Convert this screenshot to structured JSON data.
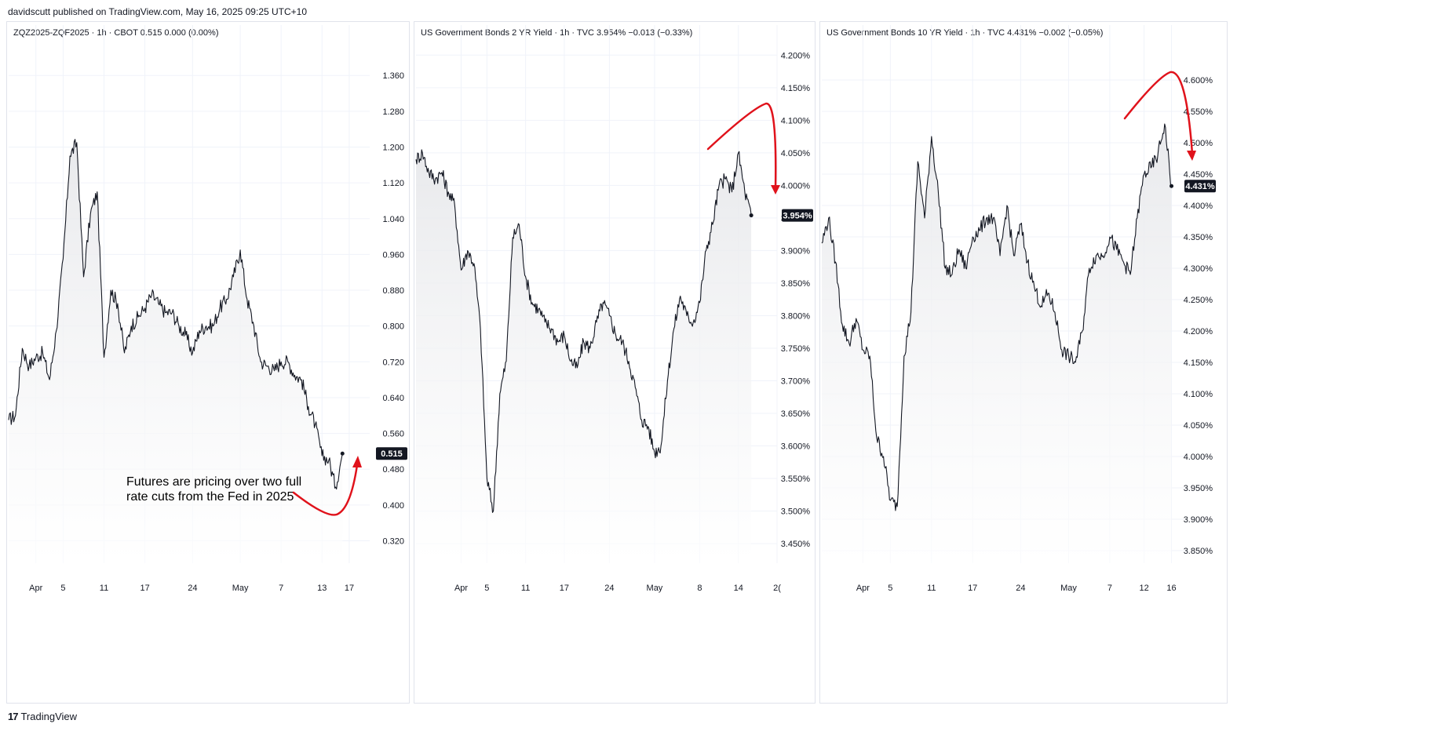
{
  "header": {
    "publisher": "davidscutt published on TradingView.com, May 16, 2025 09:25 UTC+10"
  },
  "footer": {
    "brand": "TradingView",
    "logo_glyph": "17"
  },
  "colors": {
    "line": "#131722",
    "fill_top": "#e6e7ea",
    "fill_bottom": "#ffffff",
    "annotation": "#e0121b",
    "grid": "#f0f3fa",
    "label_bg": "#131722"
  },
  "chart_data": [
    {
      "type": "area",
      "title": "ZQZ2025-ZQF2025 · 1h · CBOT  0.515  0.000 (0.00%)",
      "x_range": [
        "2025-03-28",
        "2025-05-20"
      ],
      "ylim": [
        0.27,
        1.42
      ],
      "yticks": [
        "1.360",
        "1.280",
        "1.200",
        "1.120",
        "1.040",
        "0.960",
        "0.880",
        "0.800",
        "0.720",
        "0.640",
        "0.560",
        "0.480",
        "0.400",
        "0.320"
      ],
      "xticks": [
        {
          "label": "Apr",
          "date": "2025-04-01"
        },
        {
          "label": "5",
          "date": "2025-04-05"
        },
        {
          "label": "11",
          "date": "2025-04-11"
        },
        {
          "label": "17",
          "date": "2025-04-17"
        },
        {
          "label": "24",
          "date": "2025-04-24"
        },
        {
          "label": "May",
          "date": "2025-05-01"
        },
        {
          "label": "7",
          "date": "2025-05-07"
        },
        {
          "label": "13",
          "date": "2025-05-13"
        },
        {
          "label": "17",
          "date": "2025-05-17"
        }
      ],
      "last_value": "0.515",
      "series": [
        {
          "x": [
            "2025-03-28",
            "2025-03-29",
            "2025-03-30",
            "2025-03-31",
            "2025-04-01",
            "2025-04-02",
            "2025-04-03",
            "2025-04-04",
            "2025-04-05",
            "2025-04-06",
            "2025-04-07",
            "2025-04-08",
            "2025-04-09",
            "2025-04-10",
            "2025-04-11",
            "2025-04-12",
            "2025-04-13",
            "2025-04-14",
            "2025-04-15",
            "2025-04-16",
            "2025-04-17",
            "2025-04-18",
            "2025-04-19",
            "2025-04-20",
            "2025-04-21",
            "2025-04-22",
            "2025-04-23",
            "2025-04-24",
            "2025-04-25",
            "2025-04-26",
            "2025-04-27",
            "2025-04-28",
            "2025-04-29",
            "2025-04-30",
            "2025-05-01",
            "2025-05-02",
            "2025-05-03",
            "2025-05-04",
            "2025-05-05",
            "2025-05-06",
            "2025-05-07",
            "2025-05-08",
            "2025-05-09",
            "2025-05-10",
            "2025-05-11",
            "2025-05-12",
            "2025-05-13",
            "2025-05-14",
            "2025-05-15",
            "2025-05-16"
          ],
          "y": [
            0.59,
            0.6,
            0.75,
            0.71,
            0.73,
            0.74,
            0.68,
            0.79,
            0.95,
            1.18,
            1.21,
            0.91,
            1.05,
            1.1,
            0.73,
            0.88,
            0.85,
            0.74,
            0.8,
            0.82,
            0.84,
            0.87,
            0.85,
            0.83,
            0.83,
            0.8,
            0.78,
            0.74,
            0.79,
            0.8,
            0.8,
            0.84,
            0.86,
            0.91,
            0.97,
            0.86,
            0.8,
            0.72,
            0.71,
            0.7,
            0.72,
            0.72,
            0.69,
            0.68,
            0.62,
            0.58,
            0.51,
            0.5,
            0.44,
            0.515
          ]
        }
      ],
      "annotation": "Futures are pricing over two full rate cuts from the Fed in 2025"
    },
    {
      "type": "area",
      "title": "US Government Bonds 2 YR Yield · 1h · TVC  3.954%  −0.013 (−0.33%)",
      "x_range": [
        "2025-03-25",
        "2025-05-20"
      ],
      "ylim": [
        3.42,
        4.21
      ],
      "yticks": [
        "4.200%",
        "4.150%",
        "4.100%",
        "4.050%",
        "4.000%",
        "3.950%",
        "3.900%",
        "3.850%",
        "3.800%",
        "3.750%",
        "3.700%",
        "3.650%",
        "3.600%",
        "3.550%",
        "3.500%",
        "3.450%"
      ],
      "xticks": [
        {
          "label": "Apr",
          "date": "2025-04-01"
        },
        {
          "label": "5",
          "date": "2025-04-05"
        },
        {
          "label": "11",
          "date": "2025-04-11"
        },
        {
          "label": "17",
          "date": "2025-04-17"
        },
        {
          "label": "24",
          "date": "2025-04-24"
        },
        {
          "label": "May",
          "date": "2025-05-01"
        },
        {
          "label": "8",
          "date": "2025-05-08"
        },
        {
          "label": "14",
          "date": "2025-05-14"
        },
        {
          "label": "2(",
          "date": "2025-05-20"
        }
      ],
      "last_value": "3.954%",
      "series": [
        {
          "x": [
            "2025-03-25",
            "2025-03-26",
            "2025-03-27",
            "2025-03-28",
            "2025-03-29",
            "2025-03-30",
            "2025-03-31",
            "2025-04-01",
            "2025-04-02",
            "2025-04-03",
            "2025-04-04",
            "2025-04-05",
            "2025-04-06",
            "2025-04-07",
            "2025-04-08",
            "2025-04-09",
            "2025-04-10",
            "2025-04-11",
            "2025-04-12",
            "2025-04-13",
            "2025-04-14",
            "2025-04-15",
            "2025-04-16",
            "2025-04-17",
            "2025-04-18",
            "2025-04-19",
            "2025-04-20",
            "2025-04-21",
            "2025-04-22",
            "2025-04-23",
            "2025-04-24",
            "2025-04-25",
            "2025-04-26",
            "2025-04-27",
            "2025-04-28",
            "2025-04-29",
            "2025-04-30",
            "2025-05-01",
            "2025-05-02",
            "2025-05-03",
            "2025-05-04",
            "2025-05-05",
            "2025-05-06",
            "2025-05-07",
            "2025-05-08",
            "2025-05-09",
            "2025-05-10",
            "2025-05-11",
            "2025-05-12",
            "2025-05-13",
            "2025-05-14",
            "2025-05-15",
            "2025-05-16"
          ],
          "y": [
            4.04,
            4.05,
            4.02,
            4.01,
            4.02,
            3.99,
            3.97,
            3.87,
            3.9,
            3.88,
            3.78,
            3.55,
            3.5,
            3.68,
            3.73,
            3.92,
            3.94,
            3.86,
            3.82,
            3.81,
            3.79,
            3.78,
            3.76,
            3.77,
            3.73,
            3.72,
            3.76,
            3.75,
            3.79,
            3.82,
            3.8,
            3.77,
            3.76,
            3.73,
            3.69,
            3.64,
            3.63,
            3.59,
            3.6,
            3.7,
            3.78,
            3.83,
            3.8,
            3.79,
            3.82,
            3.9,
            3.94,
            4.0,
            4.01,
            3.99,
            4.05,
            3.99,
            3.954
          ]
        }
      ]
    },
    {
      "type": "area",
      "title": "US Government Bonds 10 YR Yield · 1h · TVC  4.431%  −0.002 (−0.05%)",
      "x_range": [
        "2025-03-26",
        "2025-05-18"
      ],
      "ylim": [
        3.83,
        4.65
      ],
      "yticks": [
        "4.600%",
        "4.550%",
        "4.500%",
        "4.450%",
        "4.400%",
        "4.350%",
        "4.300%",
        "4.250%",
        "4.200%",
        "4.150%",
        "4.100%",
        "4.050%",
        "4.000%",
        "3.950%",
        "3.900%",
        "3.850%"
      ],
      "xticks": [
        {
          "label": "Apr",
          "date": "2025-04-01"
        },
        {
          "label": "5",
          "date": "2025-04-05"
        },
        {
          "label": "11",
          "date": "2025-04-11"
        },
        {
          "label": "17",
          "date": "2025-04-17"
        },
        {
          "label": "24",
          "date": "2025-04-24"
        },
        {
          "label": "May",
          "date": "2025-05-01"
        },
        {
          "label": "7",
          "date": "2025-05-07"
        },
        {
          "label": "12",
          "date": "2025-05-12"
        },
        {
          "label": "16",
          "date": "2025-05-16"
        }
      ],
      "last_value": "4.431%",
      "series": [
        {
          "x": [
            "2025-03-26",
            "2025-03-27",
            "2025-03-28",
            "2025-03-29",
            "2025-03-30",
            "2025-03-31",
            "2025-04-01",
            "2025-04-02",
            "2025-04-03",
            "2025-04-04",
            "2025-04-05",
            "2025-04-06",
            "2025-04-07",
            "2025-04-08",
            "2025-04-09",
            "2025-04-10",
            "2025-04-11",
            "2025-04-12",
            "2025-04-13",
            "2025-04-14",
            "2025-04-15",
            "2025-04-16",
            "2025-04-17",
            "2025-04-18",
            "2025-04-19",
            "2025-04-20",
            "2025-04-21",
            "2025-04-22",
            "2025-04-23",
            "2025-04-24",
            "2025-04-25",
            "2025-04-26",
            "2025-04-27",
            "2025-04-28",
            "2025-04-29",
            "2025-04-30",
            "2025-05-01",
            "2025-05-02",
            "2025-05-03",
            "2025-05-04",
            "2025-05-05",
            "2025-05-06",
            "2025-05-07",
            "2025-05-08",
            "2025-05-09",
            "2025-05-10",
            "2025-05-11",
            "2025-05-12",
            "2025-05-13",
            "2025-05-14",
            "2025-05-15",
            "2025-05-16"
          ],
          "y": [
            4.34,
            4.38,
            4.31,
            4.21,
            4.18,
            4.22,
            4.17,
            4.16,
            4.03,
            4.0,
            3.93,
            3.92,
            4.16,
            4.23,
            4.47,
            4.38,
            4.51,
            4.42,
            4.3,
            4.29,
            4.33,
            4.3,
            4.35,
            4.36,
            4.38,
            4.38,
            4.32,
            4.4,
            4.32,
            4.37,
            4.31,
            4.27,
            4.24,
            4.26,
            4.23,
            4.17,
            4.16,
            4.15,
            4.2,
            4.3,
            4.32,
            4.32,
            4.35,
            4.33,
            4.31,
            4.29,
            4.38,
            4.45,
            4.46,
            4.48,
            4.53,
            4.431
          ]
        }
      ]
    }
  ]
}
